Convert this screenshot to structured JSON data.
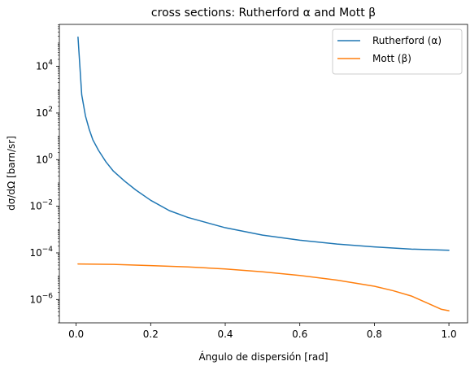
{
  "chart_data": {
    "type": "line",
    "title": "cross sections: Rutherford α and Mott β",
    "xlabel": "Ángulo de dispersión [rad]",
    "ylabel": "dσ/dΩ [barn/sr]",
    "xlim": [
      -0.045,
      1.05
    ],
    "ylim_log10": [
      -7.0,
      5.8
    ],
    "yscale": "log",
    "x_ticks": [
      0.0,
      0.2,
      0.4,
      0.6,
      0.8,
      1.0
    ],
    "x_tick_labels": [
      "0.0",
      "0.2",
      "0.4",
      "0.6",
      "0.8",
      "1.0"
    ],
    "y_ticks_log10": [
      -6,
      -4,
      -2,
      0,
      2,
      4
    ],
    "y_tick_labels": [
      {
        "base": "10",
        "exp": "−6"
      },
      {
        "base": "10",
        "exp": "−4"
      },
      {
        "base": "10",
        "exp": "−2"
      },
      {
        "base": "10",
        "exp": "0"
      },
      {
        "base": "10",
        "exp": "2"
      },
      {
        "base": "10",
        "exp": "4"
      }
    ],
    "grid": false,
    "legend_position": "top-right",
    "series": [
      {
        "name": "Rutherford (α)",
        "color": "#1f77b4",
        "x": [
          0.005,
          0.015,
          0.025,
          0.035,
          0.045,
          0.06,
          0.08,
          0.1,
          0.13,
          0.16,
          0.2,
          0.25,
          0.3,
          0.4,
          0.5,
          0.6,
          0.7,
          0.8,
          0.9,
          1.0
        ],
        "y": [
          180000,
          600,
          75,
          20,
          7,
          2.5,
          0.8,
          0.32,
          0.12,
          0.05,
          0.018,
          0.0065,
          0.0033,
          0.0012,
          0.00058,
          0.00035,
          0.00024,
          0.00018,
          0.000145,
          0.00013
        ]
      },
      {
        "name": "Mott (β)",
        "color": "#ff7f0e",
        "x": [
          0.005,
          0.1,
          0.2,
          0.3,
          0.4,
          0.5,
          0.6,
          0.7,
          0.8,
          0.85,
          0.9,
          0.95,
          0.98,
          1.0
        ],
        "y": [
          3.35e-05,
          3.2e-05,
          2.85e-05,
          2.5e-05,
          2.05e-05,
          1.55e-05,
          1.08e-05,
          6.8e-06,
          3.7e-06,
          2.4e-06,
          1.4e-06,
          6.2e-07,
          3.8e-07,
          3.3e-07
        ]
      }
    ]
  }
}
